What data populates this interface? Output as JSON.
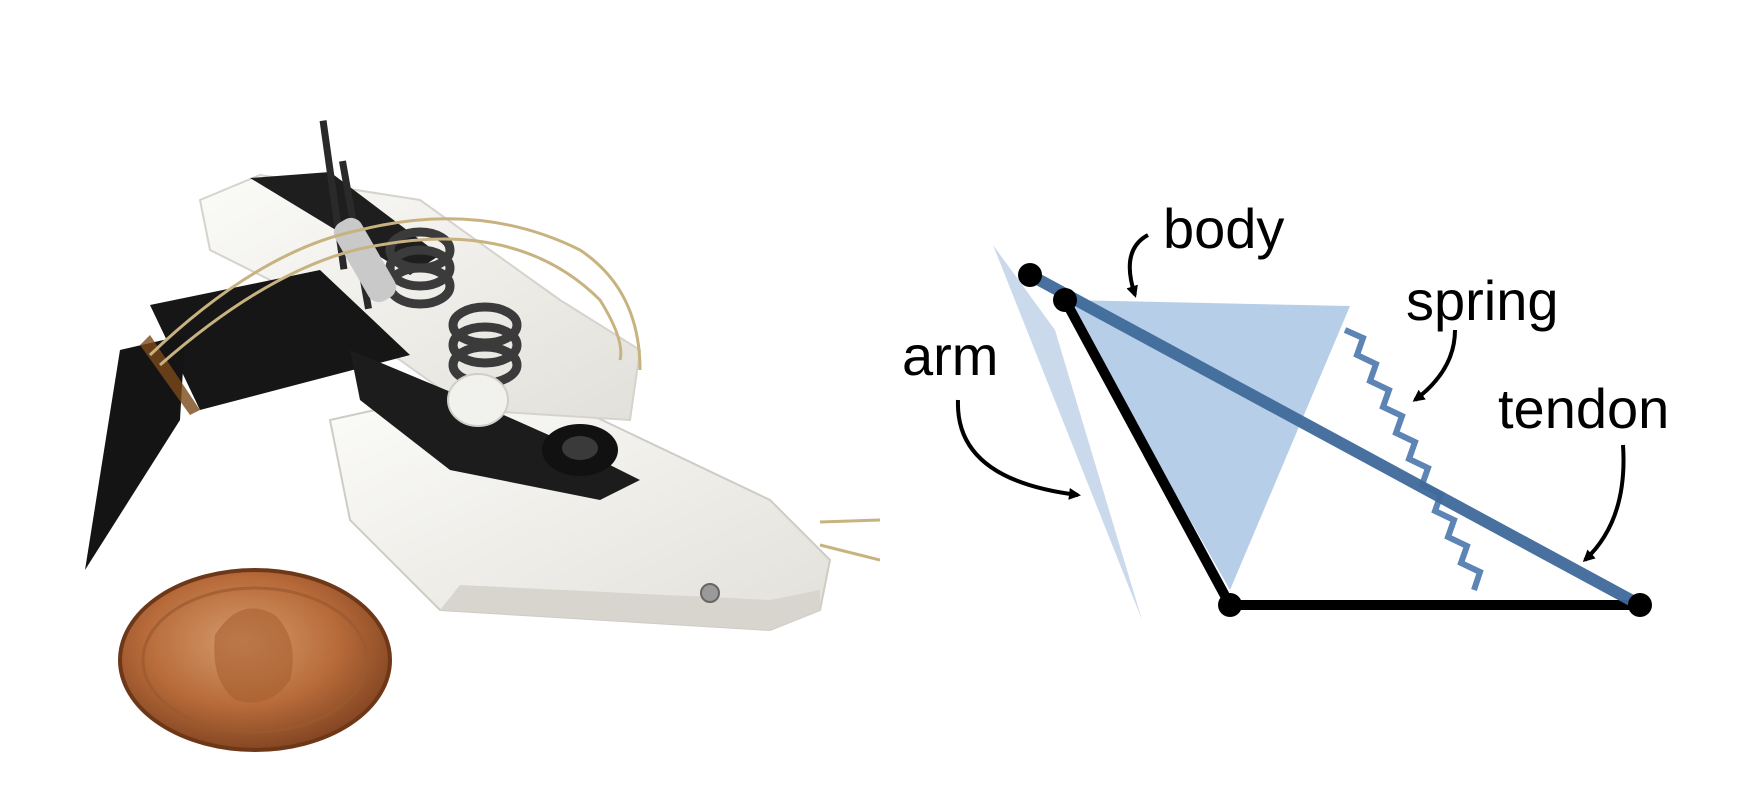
{
  "figure": {
    "photo": {
      "subject": "robot-mechanism-photo",
      "coin": "penny"
    },
    "diagram": {
      "labels": {
        "body": "body",
        "spring": "spring",
        "arm": "arm",
        "tendon": "tendon"
      },
      "colors": {
        "body_fill": "#9fbde0",
        "arm_fill": "#b8cde6",
        "tendon": "#3f6a9a",
        "spring": "#5c84b4",
        "structure": "#000000"
      },
      "icons": [
        "pivot-joint-icon",
        "arrow-icon"
      ]
    }
  }
}
